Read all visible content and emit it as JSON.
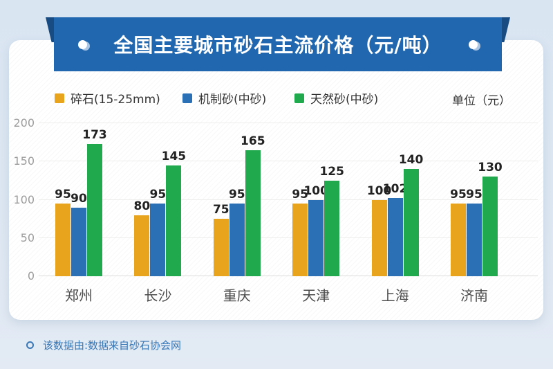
{
  "banner": {
    "title": "全国主要城市砂石主流价格（元/吨）"
  },
  "theme": {
    "banner_bg": "#2067AF",
    "banner_fold": "#174B81",
    "footer_text": "#3977B5"
  },
  "legend": {
    "items": [
      {
        "label": "碎石(15-25mm)",
        "color": "#E8A41D"
      },
      {
        "label": "机制砂(中砂)",
        "color": "#2B6FB5"
      },
      {
        "label": "天然砂(中砂)",
        "color": "#21A94E"
      }
    ],
    "unit_label": "单位（元）"
  },
  "chart_data": {
    "type": "bar",
    "title": "全国主要城市砂石主流价格（元/吨）",
    "categories": [
      "郑州",
      "长沙",
      "重庆",
      "天津",
      "上海",
      "济南"
    ],
    "series": [
      {
        "name": "碎石(15-25mm)",
        "color": "#E8A41D",
        "values": [
          95,
          80,
          75,
          95,
          100,
          95
        ]
      },
      {
        "name": "机制砂(中砂)",
        "color": "#2B6FB5",
        "values": [
          90,
          95,
          95,
          100,
          102,
          95
        ]
      },
      {
        "name": "天然砂(中砂)",
        "color": "#21A94E",
        "values": [
          173,
          145,
          165,
          125,
          140,
          130
        ]
      }
    ],
    "xlabel": "",
    "ylabel": "",
    "ylim": [
      0,
      200
    ],
    "yticks": [
      0,
      50,
      100,
      150,
      200
    ],
    "grid": true,
    "value_labels": true,
    "legend_position": "top"
  },
  "footer": {
    "note": "该数据由:数据来自砂石协会网"
  }
}
